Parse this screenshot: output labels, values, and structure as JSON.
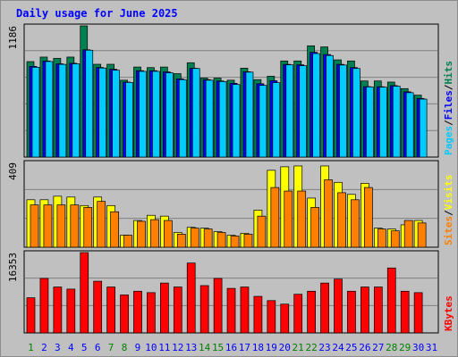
{
  "chart_data": [
    {
      "type": "bar",
      "title": "Daily usage for June 2025",
      "categories": [
        "1",
        "2",
        "3",
        "4",
        "5",
        "6",
        "7",
        "8",
        "9",
        "10",
        "11",
        "12",
        "13",
        "14",
        "15",
        "16",
        "17",
        "18",
        "19",
        "20",
        "21",
        "22",
        "23",
        "24",
        "25",
        "26",
        "27",
        "28",
        "29",
        "30",
        "31"
      ],
      "weekend_days": [
        "1",
        "7",
        "8",
        "14",
        "15",
        "21",
        "22",
        "28",
        "29"
      ],
      "y_max_label": "1186",
      "ylim": [
        0,
        1186
      ],
      "grid": true,
      "axis_label_parts": [
        "Pages",
        "/",
        "Files",
        "/",
        "Hits"
      ],
      "axis_label_colors": [
        "#00ccff",
        "#000000",
        "#0000ff",
        "#000000",
        "#008050"
      ],
      "series": [
        {
          "name": "Hits",
          "color": "#008050",
          "values": [
            863,
            904,
            893,
            904,
            1186,
            839,
            839,
            695,
            814,
            809,
            814,
            754,
            853,
            714,
            714,
            695,
            804,
            700,
            731,
            869,
            869,
            1006,
            996,
            879,
            869,
            688,
            688,
            678,
            619,
            560,
            null
          ]
        },
        {
          "name": "Files",
          "color": "#0000ff",
          "values": [
            820,
            868,
            843,
            848,
            970,
            810,
            794,
            678,
            781,
            781,
            770,
            707,
            803,
            700,
            688,
            667,
            771,
            663,
            690,
            838,
            834,
            947,
            927,
            838,
            809,
            637,
            636,
            646,
            590,
            530,
            null
          ]
        },
        {
          "name": "Pages",
          "color": "#00ccff",
          "values": [
            812,
            864,
            838,
            843,
            966,
            805,
            785,
            675,
            775,
            775,
            762,
            700,
            801,
            695,
            683,
            656,
            768,
            648,
            673,
            834,
            826,
            936,
            918,
            832,
            801,
            634,
            632,
            641,
            582,
            524,
            null
          ]
        }
      ]
    },
    {
      "type": "bar",
      "y_max_label": "409",
      "ylim": [
        0,
        409
      ],
      "grid": true,
      "axis_label_parts": [
        "Sites",
        "/",
        "Visits"
      ],
      "axis_label_colors": [
        "#ff8000",
        "#000000",
        "#ffff00"
      ],
      "series": [
        {
          "name": "Visits",
          "color": "#ffff00",
          "values": [
            229,
            229,
            246,
            242,
            201,
            242,
            201,
            58,
            129,
            154,
            150,
            71,
            96,
            92,
            75,
            58,
            67,
            179,
            371,
            388,
            392,
            237,
            392,
            313,
            255,
            308,
            92,
            88,
            108,
            129,
            null
          ]
        },
        {
          "name": "Sites",
          "color": "#ff8000",
          "values": [
            204,
            204,
            204,
            204,
            192,
            221,
            171,
            58,
            125,
            133,
            129,
            63,
            92,
            88,
            71,
            54,
            63,
            150,
            288,
            271,
            271,
            192,
            325,
            263,
            229,
            288,
            88,
            79,
            129,
            117,
            null
          ]
        }
      ]
    },
    {
      "type": "bar",
      "y_max_label": "16353",
      "ylim": [
        0,
        16353
      ],
      "grid": true,
      "axis_label_parts": [
        "KBytes"
      ],
      "axis_label_colors": [
        "#ff0000"
      ],
      "series": [
        {
          "name": "KBytes",
          "color": "#ff0000",
          "values": [
            7154,
            11095,
            9348,
            8918,
            16353,
            10521,
            9348,
            7728,
            8488,
            8201,
            10148,
            9348,
            14224,
            9632,
            11095,
            9061,
            9348,
            7441,
            6577,
            5861,
            7868,
            8488,
            10148,
            10954,
            8488,
            9348,
            9348,
            13218,
            8488,
            8201,
            null
          ]
        }
      ]
    }
  ],
  "colors": {
    "background": "#c0c0c0",
    "plot_background": "#c0c0c0",
    "axis_line": "#000000",
    "grid_line": "#808080",
    "title": "#0000ff",
    "weekday_label": "#0000ff",
    "weekend_label": "#008000"
  }
}
